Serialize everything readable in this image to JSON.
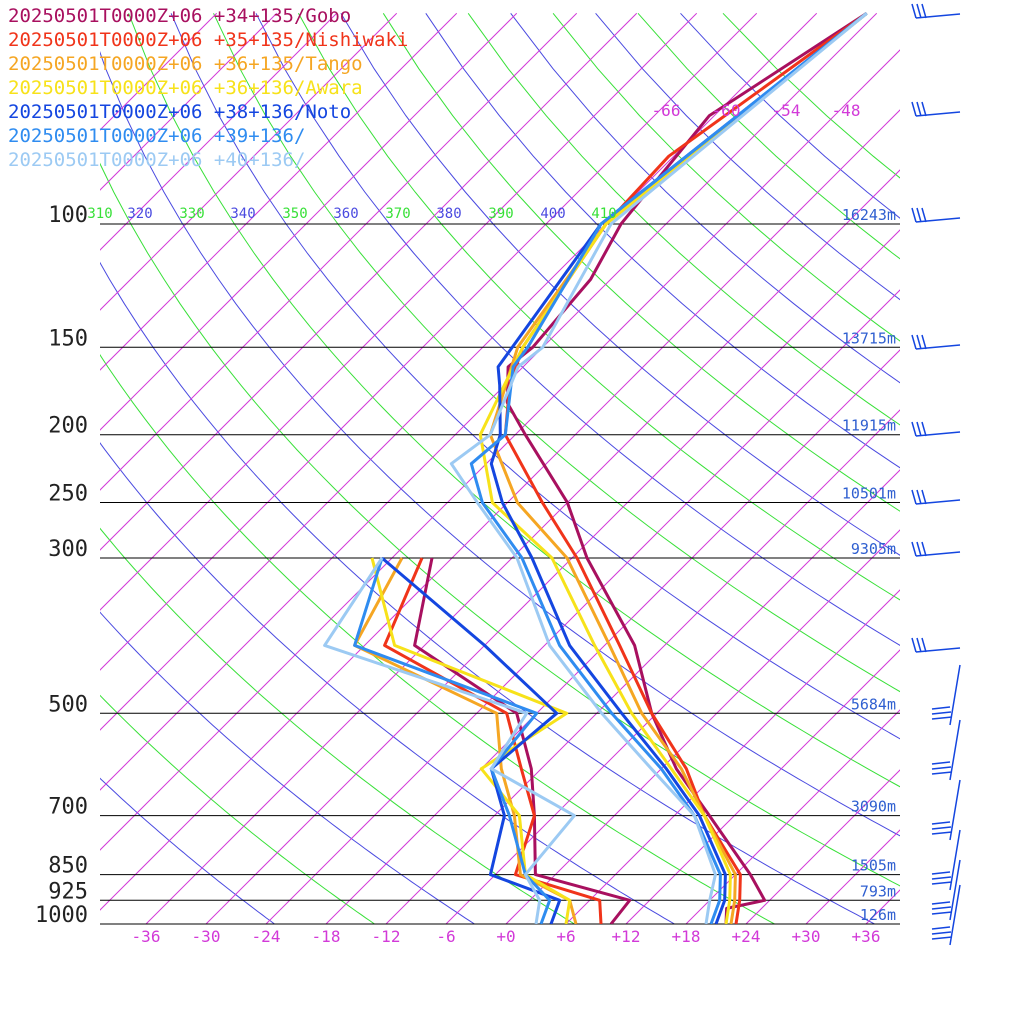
{
  "legend": [
    {
      "label": "20250501T0000Z+06 +34+135/Gobo",
      "color": "#a8105f"
    },
    {
      "label": "20250501T0000Z+06 +35+135/Nishiwaki",
      "color": "#f0341a"
    },
    {
      "label": "20250501T0000Z+06 +36+135/Tango",
      "color": "#f5a623"
    },
    {
      "label": "20250501T0000Z+06 +36+136/Awara",
      "color": "#f7e21a"
    },
    {
      "label": "20250501T0000Z+06 +38+136/Noto",
      "color": "#1446e0"
    },
    {
      "label": "20250501T0000Z+06 +39+136/",
      "color": "#2f8cf0"
    },
    {
      "label": "20250501T0000Z+06 +40+136/",
      "color": "#9ccaf3"
    }
  ],
  "chart_data": {
    "type": "skew-t",
    "pressure_ticks": [
      "100",
      "150",
      "200",
      "250",
      "300",
      "500",
      "700",
      "850",
      "925",
      "1000"
    ],
    "pressure_values": [
      100,
      150,
      200,
      250,
      300,
      500,
      700,
      850,
      925,
      1000
    ],
    "height_labels": [
      "16243m",
      "13715m",
      "11915m",
      "10501m",
      "9305m",
      "5684m",
      "3090m",
      "1505m",
      "793m",
      "126m"
    ],
    "height_pressures": [
      100,
      150,
      200,
      250,
      300,
      500,
      700,
      850,
      925,
      1000
    ],
    "temp_tick_values": [
      -36,
      -30,
      -24,
      -18,
      -12,
      -6,
      0,
      6,
      12,
      18,
      24,
      30,
      36
    ],
    "temp_tick_labels": [
      "-36",
      "-30",
      "-24",
      "-18",
      "-12",
      "-6",
      "+0",
      "+6",
      "+12",
      "+18",
      "+24",
      "+30",
      "+36"
    ],
    "upper_temp_labels": [
      "-66",
      "-60",
      "-54",
      "-48"
    ],
    "theta_labels": [
      "310",
      "320",
      "330",
      "340",
      "350",
      "360",
      "370",
      "380",
      "390",
      "400",
      "410"
    ],
    "series": [
      {
        "name": "20250501T0000Z+06 +34+135/Gobo",
        "color": "#a8105f",
        "temperature": [
          [
            1000,
            22.0
          ],
          [
            950,
            20.5
          ],
          [
            925,
            23.5
          ],
          [
            850,
            19.5
          ],
          [
            700,
            9.5
          ],
          [
            600,
            1.5
          ],
          [
            500,
            -6.5
          ],
          [
            400,
            -15.0
          ],
          [
            300,
            -28.5
          ],
          [
            250,
            -36.0
          ],
          [
            200,
            -47.0
          ],
          [
            180,
            -52.0
          ],
          [
            160,
            -55.5
          ],
          [
            150,
            -55.0
          ],
          [
            120,
            -56.0
          ],
          [
            100,
            -58.5
          ],
          [
            70,
            -60.5
          ],
          [
            50,
            -55.0
          ]
        ],
        "dewpoint": [
          [
            1000,
            10.5
          ],
          [
            925,
            10.0
          ],
          [
            850,
            -2.0
          ],
          [
            700,
            -8.0
          ],
          [
            600,
            -13.0
          ],
          [
            500,
            -20.0
          ],
          [
            400,
            -37.0
          ],
          [
            300,
            -44.0
          ]
        ]
      },
      {
        "name": "20250501T0000Z+06 +35+135/Nishiwaki",
        "color": "#f0341a",
        "temperature": [
          [
            1000,
            23.0
          ],
          [
            925,
            21.0
          ],
          [
            850,
            18.5
          ],
          [
            700,
            9.0
          ],
          [
            600,
            2.5
          ],
          [
            500,
            -6.5
          ],
          [
            400,
            -16.5
          ],
          [
            300,
            -29.5
          ],
          [
            250,
            -38.5
          ],
          [
            200,
            -49.0
          ],
          [
            170,
            -53.5
          ],
          [
            150,
            -56.0
          ],
          [
            100,
            -60.0
          ],
          [
            80,
            -60.5
          ],
          [
            50,
            -55.0
          ]
        ],
        "dewpoint": [
          [
            1000,
            9.5
          ],
          [
            925,
            7.0
          ],
          [
            850,
            -4.0
          ],
          [
            700,
            -8.0
          ],
          [
            600,
            -14.0
          ],
          [
            500,
            -21.0
          ],
          [
            400,
            -40.0
          ],
          [
            300,
            -45.0
          ]
        ]
      },
      {
        "name": "20250501T0000Z+06 +36+135/Tango",
        "color": "#f5a623",
        "temperature": [
          [
            1000,
            22.5
          ],
          [
            925,
            20.5
          ],
          [
            850,
            18.0
          ],
          [
            700,
            9.0
          ],
          [
            600,
            2.0
          ],
          [
            500,
            -7.5
          ],
          [
            400,
            -17.5
          ],
          [
            300,
            -30.5
          ],
          [
            250,
            -41.0
          ],
          [
            200,
            -50.5
          ],
          [
            150,
            -56.5
          ],
          [
            100,
            -60.0
          ],
          [
            50,
            -55.0
          ]
        ],
        "dewpoint": [
          [
            1000,
            7.0
          ],
          [
            925,
            4.0
          ],
          [
            850,
            -3.5
          ],
          [
            700,
            -10.0
          ],
          [
            600,
            -16.0
          ],
          [
            500,
            -22.0
          ],
          [
            400,
            -43.0
          ],
          [
            300,
            -47.0
          ]
        ]
      },
      {
        "name": "20250501T0000Z+06 +36+136/Awara",
        "color": "#f7e21a",
        "temperature": [
          [
            1000,
            22.0
          ],
          [
            925,
            20.0
          ],
          [
            850,
            17.5
          ],
          [
            700,
            9.0
          ],
          [
            600,
            1.0
          ],
          [
            500,
            -8.5
          ],
          [
            400,
            -19.0
          ],
          [
            300,
            -32.0
          ],
          [
            250,
            -43.5
          ],
          [
            200,
            -51.5
          ],
          [
            150,
            -56.0
          ],
          [
            100,
            -60.0
          ],
          [
            50,
            -55.0
          ]
        ],
        "dewpoint": [
          [
            1000,
            6.0
          ],
          [
            925,
            4.0
          ],
          [
            850,
            -3.0
          ],
          [
            700,
            -9.5
          ],
          [
            600,
            -18.0
          ],
          [
            500,
            -15.0
          ],
          [
            400,
            -39.0
          ],
          [
            300,
            -50.0
          ]
        ]
      },
      {
        "name": "20250501T0000Z+06 +38+136/Noto",
        "color": "#1446e0",
        "temperature": [
          [
            1000,
            21.0
          ],
          [
            925,
            19.5
          ],
          [
            850,
            17.0
          ],
          [
            700,
            8.5
          ],
          [
            600,
            0.5
          ],
          [
            500,
            -9.5
          ],
          [
            400,
            -21.5
          ],
          [
            300,
            -34.0
          ],
          [
            250,
            -42.5
          ],
          [
            220,
            -47.5
          ],
          [
            200,
            -49.5
          ],
          [
            170,
            -54.5
          ],
          [
            160,
            -56.5
          ],
          [
            100,
            -60.5
          ],
          [
            50,
            -55.0
          ]
        ],
        "dewpoint": [
          [
            1000,
            4.5
          ],
          [
            925,
            3.0
          ],
          [
            850,
            -6.5
          ],
          [
            700,
            -11.0
          ],
          [
            600,
            -17.0
          ],
          [
            500,
            -16.0
          ],
          [
            400,
            -30.0
          ],
          [
            300,
            -49.0
          ]
        ]
      },
      {
        "name": "20250501T0000Z+06 +39+136/",
        "color": "#2f8cf0",
        "temperature": [
          [
            1000,
            20.5
          ],
          [
            925,
            19.0
          ],
          [
            850,
            16.5
          ],
          [
            700,
            8.0
          ],
          [
            600,
            0.0
          ],
          [
            500,
            -10.5
          ],
          [
            400,
            -22.5
          ],
          [
            300,
            -35.0
          ],
          [
            250,
            -44.5
          ],
          [
            220,
            -49.5
          ],
          [
            200,
            -49.0
          ],
          [
            160,
            -55.0
          ],
          [
            150,
            -55.5
          ],
          [
            100,
            -60.5
          ],
          [
            50,
            -55.0
          ]
        ],
        "dewpoint": [
          [
            1000,
            3.5
          ],
          [
            925,
            2.0
          ],
          [
            850,
            -3.0
          ],
          [
            700,
            -10.5
          ],
          [
            600,
            -17.0
          ],
          [
            500,
            -18.0
          ],
          [
            400,
            -43.0
          ],
          [
            300,
            -49.0
          ]
        ]
      },
      {
        "name": "20250501T0000Z+06 +40+136/",
        "color": "#9ccaf3",
        "temperature": [
          [
            1000,
            20.0
          ],
          [
            925,
            18.0
          ],
          [
            850,
            16.0
          ],
          [
            700,
            8.0
          ],
          [
            600,
            -1.0
          ],
          [
            500,
            -11.5
          ],
          [
            400,
            -23.5
          ],
          [
            300,
            -35.5
          ],
          [
            250,
            -45.0
          ],
          [
            220,
            -51.5
          ],
          [
            200,
            -50.5
          ],
          [
            160,
            -54.5
          ],
          [
            150,
            -54.0
          ],
          [
            100,
            -59.5
          ],
          [
            50,
            -55.0
          ]
        ],
        "dewpoint": [
          [
            1000,
            3.0
          ],
          [
            925,
            1.0
          ],
          [
            850,
            -3.0
          ],
          [
            700,
            -4.0
          ],
          [
            600,
            -17.0
          ],
          [
            500,
            -19.0
          ],
          [
            400,
            -46.0
          ],
          [
            300,
            -49.0
          ]
        ]
      }
    ],
    "wind_color": "#1446e0",
    "grid": true
  }
}
